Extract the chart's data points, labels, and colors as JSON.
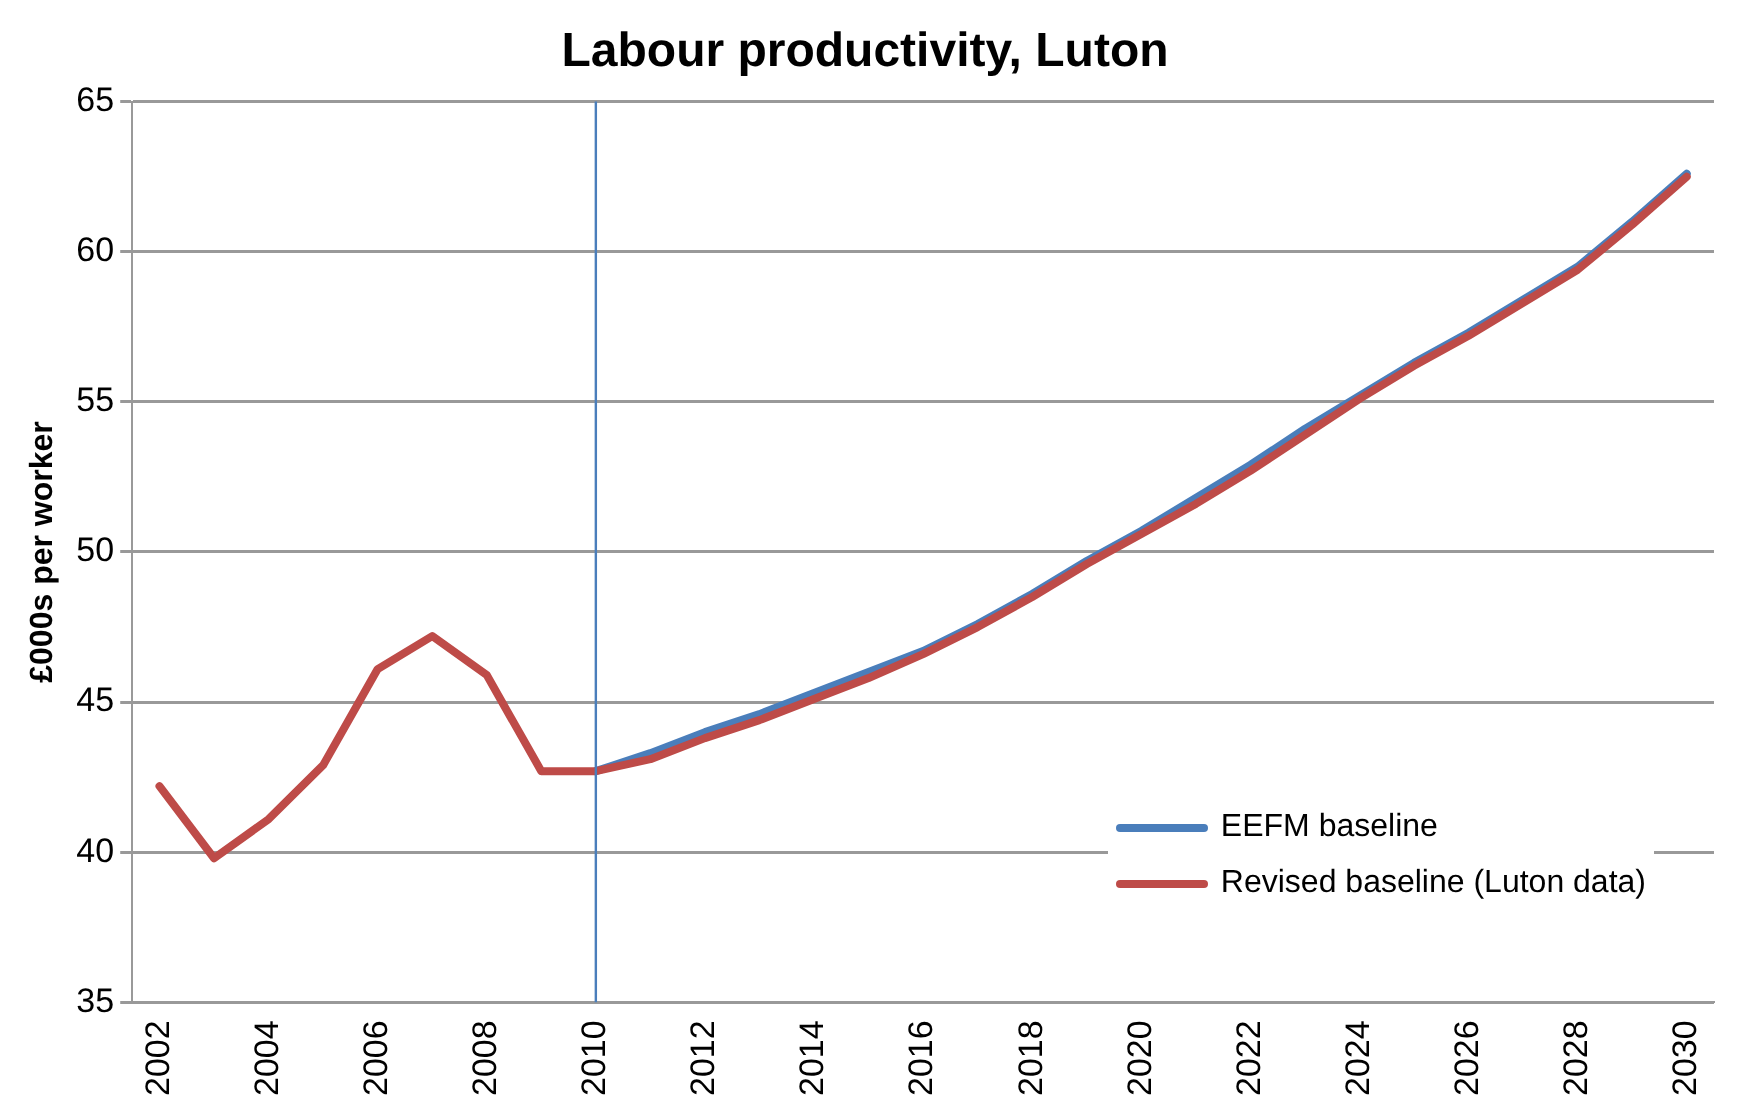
{
  "chart_data": {
    "type": "line",
    "title": "Labour productivity, Luton",
    "ylabel": "£000s per worker",
    "categories": [
      "2002",
      null,
      "2004",
      null,
      "2006",
      null,
      "2008",
      null,
      "2010",
      null,
      "2012",
      null,
      "2014",
      null,
      "2016",
      null,
      "2018",
      null,
      "2020",
      null,
      "2022",
      null,
      "2024",
      null,
      "2026",
      null,
      "2028",
      null,
      "2030"
    ],
    "series": [
      {
        "name": "EEFM baseline",
        "color": "#4a7ebb",
        "values": [
          null,
          null,
          null,
          null,
          null,
          null,
          null,
          null,
          42.7,
          43.3,
          44.0,
          44.6,
          45.3,
          46.0,
          46.7,
          47.6,
          48.6,
          49.7,
          50.7,
          51.8,
          52.9,
          54.1,
          55.2,
          56.3,
          57.3,
          58.4,
          59.5,
          61.0,
          62.6
        ]
      },
      {
        "name": "Revised baseline (Luton  data)",
        "color": "#be4b48",
        "values": [
          42.2,
          39.8,
          41.1,
          42.9,
          46.1,
          47.2,
          45.9,
          42.7,
          42.7,
          43.1,
          43.8,
          44.4,
          45.1,
          45.8,
          46.6,
          47.5,
          48.5,
          49.6,
          50.6,
          51.6,
          52.7,
          53.9,
          55.1,
          56.2,
          57.2,
          58.3,
          59.4,
          60.9,
          62.5
        ]
      }
    ],
    "ylim": [
      35,
      65
    ],
    "yticks": [
      35,
      40,
      45,
      50,
      55,
      60,
      65
    ],
    "grid": "y",
    "legend": "bottom right",
    "marker": "none",
    "line_style": "solid",
    "ref_lines": [
      {
        "axis": "x",
        "value": "2010",
        "color": "#4a7ebb"
      }
    ]
  }
}
